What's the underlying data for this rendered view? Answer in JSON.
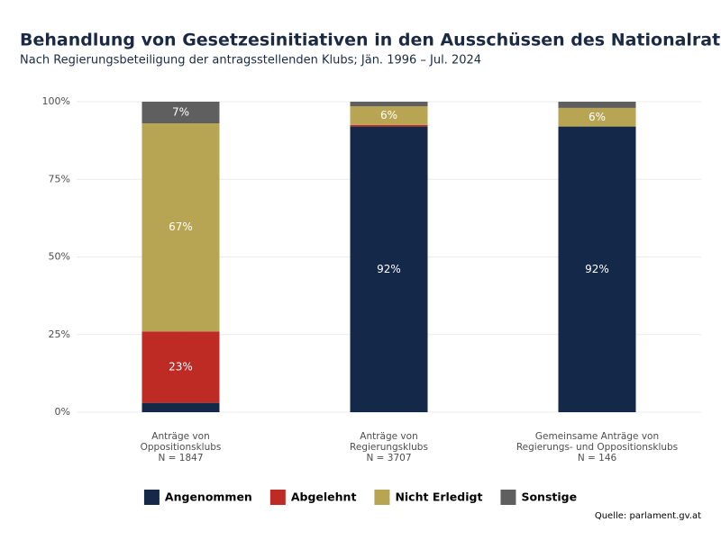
{
  "chart_data": {
    "type": "stacked-bar",
    "title": "Behandlung von Gesetzesinitiativen in den Ausschüssen des Nationalrats",
    "subtitle": "Nach Regierungsbeteiligung der antragsstellenden Klubs; Jän. 1996 – Jul. 2024",
    "source": "Quelle: parlament.gv.at",
    "categories": [
      "Anträge von\nOppositionsklubs\nN = 1847",
      "Anträge von\nRegierungsklubs\nN = 3707",
      "Gemeinsame Anträge von\nRegierungs- und Oppositionsklubs\nN = 146"
    ],
    "series": [
      {
        "name": "Angenommen",
        "color": "#14284a",
        "values": [
          3,
          92,
          92
        ],
        "value_labels": [
          null,
          "92%",
          "92%"
        ]
      },
      {
        "name": "Abgelehnt",
        "color": "#be2a24",
        "values": [
          23,
          0.5,
          0
        ],
        "value_labels": [
          "23%",
          null,
          null
        ]
      },
      {
        "name": "Nicht Erledigt",
        "color": "#b8a553",
        "values": [
          67,
          6,
          6
        ],
        "value_labels": [
          "67%",
          "6%",
          "6%"
        ]
      },
      {
        "name": "Sonstige",
        "color": "#5f5f5f",
        "values": [
          7,
          1.5,
          2
        ],
        "value_labels": [
          "7%",
          null,
          null
        ]
      }
    ],
    "ylim": [
      0,
      100
    ],
    "yticks": [
      {
        "value": 0,
        "label": "0%"
      },
      {
        "value": 25,
        "label": "25%"
      },
      {
        "value": 50,
        "label": "50%"
      },
      {
        "value": 75,
        "label": "75%"
      },
      {
        "value": 100,
        "label": "100%"
      }
    ],
    "grid": true,
    "legend": "bottom"
  }
}
